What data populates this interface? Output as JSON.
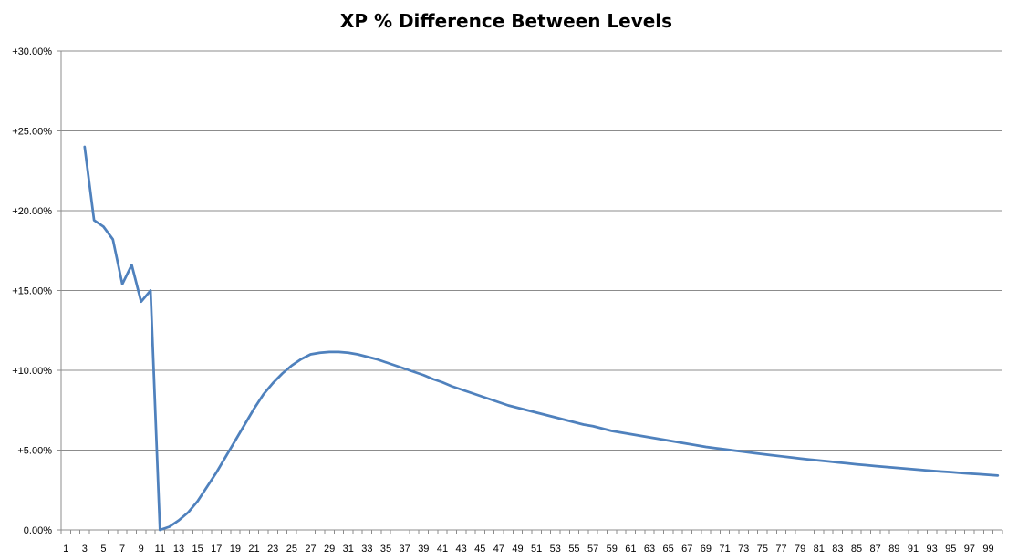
{
  "chart_data": {
    "type": "line",
    "title": "XP % Difference Between Levels",
    "xlabel": "",
    "ylabel": "",
    "ylim": [
      0,
      30
    ],
    "y_ticks": [
      {
        "value": 0,
        "label": "0.00%"
      },
      {
        "value": 5,
        "label": "+5.00%"
      },
      {
        "value": 10,
        "label": "+10.00%"
      },
      {
        "value": 15,
        "label": "+15.00%"
      },
      {
        "value": 20,
        "label": "+20.00%"
      },
      {
        "value": 25,
        "label": "+25.00%"
      },
      {
        "value": 30,
        "label": "+30.00%"
      }
    ],
    "x_categories": [
      1,
      2,
      3,
      4,
      5,
      6,
      7,
      8,
      9,
      10,
      11,
      12,
      13,
      14,
      15,
      16,
      17,
      18,
      19,
      20,
      21,
      22,
      23,
      24,
      25,
      26,
      27,
      28,
      29,
      30,
      31,
      32,
      33,
      34,
      35,
      36,
      37,
      38,
      39,
      40,
      41,
      42,
      43,
      44,
      45,
      46,
      47,
      48,
      49,
      50,
      51,
      52,
      53,
      54,
      55,
      56,
      57,
      58,
      59,
      60,
      61,
      62,
      63,
      64,
      65,
      66,
      67,
      68,
      69,
      70,
      71,
      72,
      73,
      74,
      75,
      76,
      77,
      78,
      79,
      80,
      81,
      82,
      83,
      84,
      85,
      86,
      87,
      88,
      89,
      90,
      91,
      92,
      93,
      94,
      95,
      96,
      97,
      98,
      99,
      100
    ],
    "x_tick_labels": [
      "1",
      "3",
      "5",
      "7",
      "9",
      "11",
      "13",
      "15",
      "17",
      "19",
      "21",
      "23",
      "25",
      "27",
      "29",
      "31",
      "33",
      "35",
      "37",
      "39",
      "41",
      "43",
      "45",
      "47",
      "49",
      "51",
      "53",
      "55",
      "57",
      "59",
      "61",
      "63",
      "65",
      "67",
      "69",
      "71",
      "73",
      "75",
      "77",
      "79",
      "81",
      "83",
      "85",
      "87",
      "89",
      "91",
      "93",
      "95",
      "97",
      "99"
    ],
    "grid": true,
    "legend": "none",
    "series": [
      {
        "color": "#4f81bd",
        "x": [
          3,
          4,
          5,
          6,
          7,
          8,
          9,
          10,
          11,
          12,
          13,
          14,
          15,
          16,
          17,
          18,
          19,
          20,
          21,
          22,
          23,
          24,
          25,
          26,
          27,
          28,
          29,
          30,
          31,
          32,
          33,
          34,
          35,
          36,
          37,
          38,
          39,
          40,
          41,
          42,
          43,
          44,
          45,
          46,
          47,
          48,
          49,
          50,
          51,
          52,
          53,
          54,
          55,
          56,
          57,
          58,
          59,
          60,
          61,
          62,
          63,
          64,
          65,
          66,
          67,
          68,
          69,
          70,
          71,
          72,
          73,
          74,
          75,
          76,
          77,
          78,
          79,
          80,
          81,
          82,
          83,
          84,
          85,
          86,
          87,
          88,
          89,
          90,
          91,
          92,
          93,
          94,
          95,
          96,
          97,
          98,
          99,
          100
        ],
        "values": [
          24.0,
          19.4,
          19.0,
          18.2,
          15.4,
          16.6,
          14.3,
          15.0,
          0.0,
          0.2,
          0.6,
          1.1,
          1.8,
          2.7,
          3.6,
          4.6,
          5.6,
          6.6,
          7.6,
          8.5,
          9.2,
          9.8,
          10.3,
          10.7,
          11.0,
          11.1,
          11.15,
          11.15,
          11.1,
          11.0,
          10.85,
          10.7,
          10.5,
          10.3,
          10.1,
          9.9,
          9.7,
          9.45,
          9.25,
          9.0,
          8.8,
          8.6,
          8.4,
          8.2,
          8.0,
          7.8,
          7.65,
          7.5,
          7.35,
          7.2,
          7.05,
          6.9,
          6.75,
          6.6,
          6.5,
          6.35,
          6.2,
          6.1,
          6.0,
          5.9,
          5.8,
          5.7,
          5.6,
          5.5,
          5.4,
          5.3,
          5.2,
          5.12,
          5.05,
          4.97,
          4.9,
          4.82,
          4.75,
          4.68,
          4.61,
          4.54,
          4.47,
          4.41,
          4.35,
          4.29,
          4.23,
          4.17,
          4.11,
          4.06,
          4.0,
          3.95,
          3.9,
          3.85,
          3.8,
          3.75,
          3.7,
          3.66,
          3.62,
          3.57,
          3.53,
          3.49,
          3.45,
          3.41
        ]
      }
    ]
  }
}
